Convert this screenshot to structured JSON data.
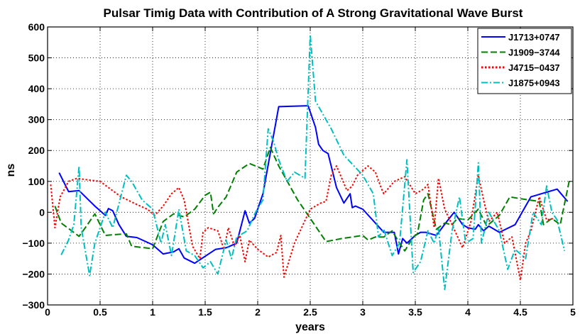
{
  "chart_data": {
    "type": "line",
    "title": "Pulsar Timig Data with Contribution of A Strong Gravitational Wave Burst",
    "xlabel": "years",
    "ylabel": "ns",
    "xlim": [
      0,
      5
    ],
    "ylim": [
      -300,
      600
    ],
    "xticks": [
      0,
      0.5,
      1,
      1.5,
      2,
      2.5,
      3,
      3.5,
      4,
      4.5,
      5
    ],
    "xtick_labels": [
      "0",
      "0.5",
      "1",
      "1.5",
      "2",
      "2.5",
      "3",
      "3.5",
      "4",
      "4.5",
      "5"
    ],
    "yticks": [
      -300,
      -200,
      -100,
      0,
      100,
      200,
      300,
      400,
      500,
      600
    ],
    "ytick_labels": [
      "−300",
      "−200",
      "−100",
      "0",
      "100",
      "200",
      "300",
      "400",
      "500",
      "600"
    ],
    "grid": true,
    "legend_position": "top-right",
    "series": [
      {
        "name": "J1713+0747",
        "color": "#0000ff",
        "style": "solid",
        "x": [
          0.11,
          0.2,
          0.3,
          0.45,
          0.55,
          0.58,
          0.62,
          0.68,
          0.75,
          0.85,
          1.0,
          1.1,
          1.2,
          1.25,
          1.3,
          1.4,
          1.6,
          1.7,
          1.8,
          1.88,
          1.92,
          1.97,
          2.05,
          2.2,
          2.48,
          2.55,
          2.58,
          2.62,
          2.67,
          2.75,
          2.82,
          2.88,
          2.9,
          2.93,
          3.0,
          3.2,
          3.3,
          3.34,
          3.38,
          3.42,
          3.5,
          3.55,
          3.6,
          3.65,
          3.7,
          3.8,
          3.87,
          3.95,
          4.0,
          4.07,
          4.1,
          4.15,
          4.2,
          4.3,
          4.45,
          4.55,
          4.6,
          4.65,
          4.75,
          4.85,
          4.95
        ],
        "y": [
          128,
          67,
          70,
          20,
          -10,
          12,
          5,
          -40,
          -78,
          -82,
          -105,
          -135,
          -128,
          -118,
          -148,
          -165,
          -120,
          -115,
          -100,
          5,
          -35,
          -20,
          60,
          342,
          345,
          275,
          220,
          200,
          190,
          80,
          30,
          60,
          15,
          20,
          10,
          -65,
          -65,
          -135,
          -85,
          -100,
          -75,
          -65,
          -65,
          -70,
          -75,
          -30,
          0,
          -40,
          -50,
          -55,
          -40,
          -60,
          -45,
          -65,
          -40,
          20,
          50,
          55,
          65,
          75,
          35
        ]
      },
      {
        "name": "J1909−3744",
        "color": "#008000",
        "style": "dashed",
        "x": [
          0.07,
          0.13,
          0.3,
          0.38,
          0.45,
          0.55,
          0.65,
          0.75,
          0.8,
          1.0,
          1.1,
          1.2,
          1.25,
          1.3,
          1.4,
          1.5,
          1.55,
          1.58,
          1.63,
          1.7,
          1.8,
          1.92,
          2.05,
          2.12,
          2.2,
          2.38,
          2.5,
          2.65,
          2.8,
          3.0,
          3.05,
          3.12,
          3.2,
          3.28,
          3.35,
          3.4,
          3.48,
          3.52,
          3.58,
          3.62,
          3.7,
          3.78,
          3.85,
          3.9,
          4.0,
          4.1,
          4.18,
          4.3,
          4.4,
          4.48,
          4.58,
          4.68,
          4.72,
          4.8,
          4.88,
          4.97
        ],
        "y": [
          20,
          -35,
          -78,
          -40,
          -5,
          -75,
          -72,
          -70,
          -110,
          -118,
          -30,
          -5,
          -10,
          -15,
          10,
          55,
          65,
          -5,
          20,
          50,
          130,
          158,
          140,
          210,
          150,
          40,
          -20,
          -95,
          -85,
          -75,
          -90,
          -80,
          -80,
          -60,
          -100,
          -125,
          -80,
          -70,
          40,
          60,
          -55,
          -35,
          -40,
          -20,
          -25,
          10,
          -45,
          -10,
          50,
          45,
          40,
          35,
          -40,
          -20,
          -40,
          110
        ]
      },
      {
        "name": "J4715−0437",
        "color": "#ff0000",
        "style": "dotted",
        "x": [
          0.03,
          0.07,
          0.12,
          0.2,
          0.28,
          0.38,
          0.5,
          0.6,
          0.7,
          0.85,
          0.95,
          1.02,
          1.1,
          1.18,
          1.25,
          1.3,
          1.38,
          1.45,
          1.48,
          1.53,
          1.62,
          1.68,
          1.72,
          1.78,
          1.83,
          1.88,
          1.92,
          2.0,
          2.1,
          2.18,
          2.22,
          2.25,
          2.35,
          2.5,
          2.6,
          2.65,
          2.7,
          2.75,
          2.85,
          2.9,
          2.95,
          3.05,
          3.12,
          3.18,
          3.2,
          3.3,
          3.4,
          3.5,
          3.58,
          3.62,
          3.68,
          3.72,
          3.78,
          3.85,
          3.95,
          4.03,
          4.1,
          4.15,
          4.2,
          4.28,
          4.35,
          4.42,
          4.5,
          4.55,
          4.6,
          4.68,
          4.75,
          4.82
        ],
        "y": [
          90,
          -50,
          50,
          100,
          110,
          105,
          100,
          75,
          50,
          25,
          10,
          -10,
          20,
          60,
          80,
          40,
          -110,
          -150,
          -65,
          -50,
          -60,
          -120,
          -50,
          -110,
          -75,
          -160,
          -90,
          -120,
          -145,
          -130,
          -75,
          -210,
          -100,
          10,
          30,
          35,
          120,
          150,
          70,
          85,
          120,
          150,
          130,
          75,
          60,
          100,
          115,
          60,
          75,
          90,
          -50,
          110,
          10,
          -40,
          -115,
          -30,
          120,
          40,
          -30,
          0,
          -100,
          -80,
          -220,
          -100,
          -60,
          50,
          -25,
          -20
        ]
      },
      {
        "name": "J1875+0943",
        "color": "#00bfbf",
        "style": "dashdot",
        "x": [
          0.13,
          0.2,
          0.25,
          0.3,
          0.32,
          0.4,
          0.45,
          0.55,
          0.62,
          0.75,
          0.8,
          0.9,
          1.0,
          1.08,
          1.12,
          1.18,
          1.25,
          1.32,
          1.4,
          1.48,
          1.55,
          1.62,
          1.7,
          1.75,
          1.8,
          1.9,
          1.98,
          2.05,
          2.1,
          2.15,
          2.2,
          2.28,
          2.35,
          2.45,
          2.5,
          2.55,
          2.6,
          2.7,
          2.82,
          3.0,
          3.1,
          3.15,
          3.2,
          3.28,
          3.35,
          3.42,
          3.48,
          3.55,
          3.62,
          3.68,
          3.72,
          3.78,
          3.85,
          3.92,
          3.98,
          4.05,
          4.1,
          4.13,
          4.2,
          4.3,
          4.38,
          4.45,
          4.55,
          4.62,
          4.7,
          4.75,
          4.8,
          4.85,
          4.92
        ],
        "y": [
          -138,
          -90,
          -40,
          150,
          -50,
          -205,
          -100,
          0,
          -50,
          120,
          100,
          40,
          10,
          -100,
          -40,
          -140,
          10,
          -125,
          -140,
          -180,
          -160,
          -200,
          -90,
          -150,
          -80,
          -60,
          0,
          40,
          270,
          230,
          170,
          100,
          130,
          110,
          575,
          360,
          330,
          270,
          185,
          120,
          60,
          -80,
          -55,
          -140,
          -100,
          170,
          -195,
          -160,
          -60,
          -100,
          -50,
          -250,
          -60,
          50,
          -100,
          -85,
          160,
          -100,
          0,
          -60,
          -185,
          -120,
          -150,
          0,
          -40,
          85,
          0,
          -25,
          -125
        ]
      }
    ]
  }
}
